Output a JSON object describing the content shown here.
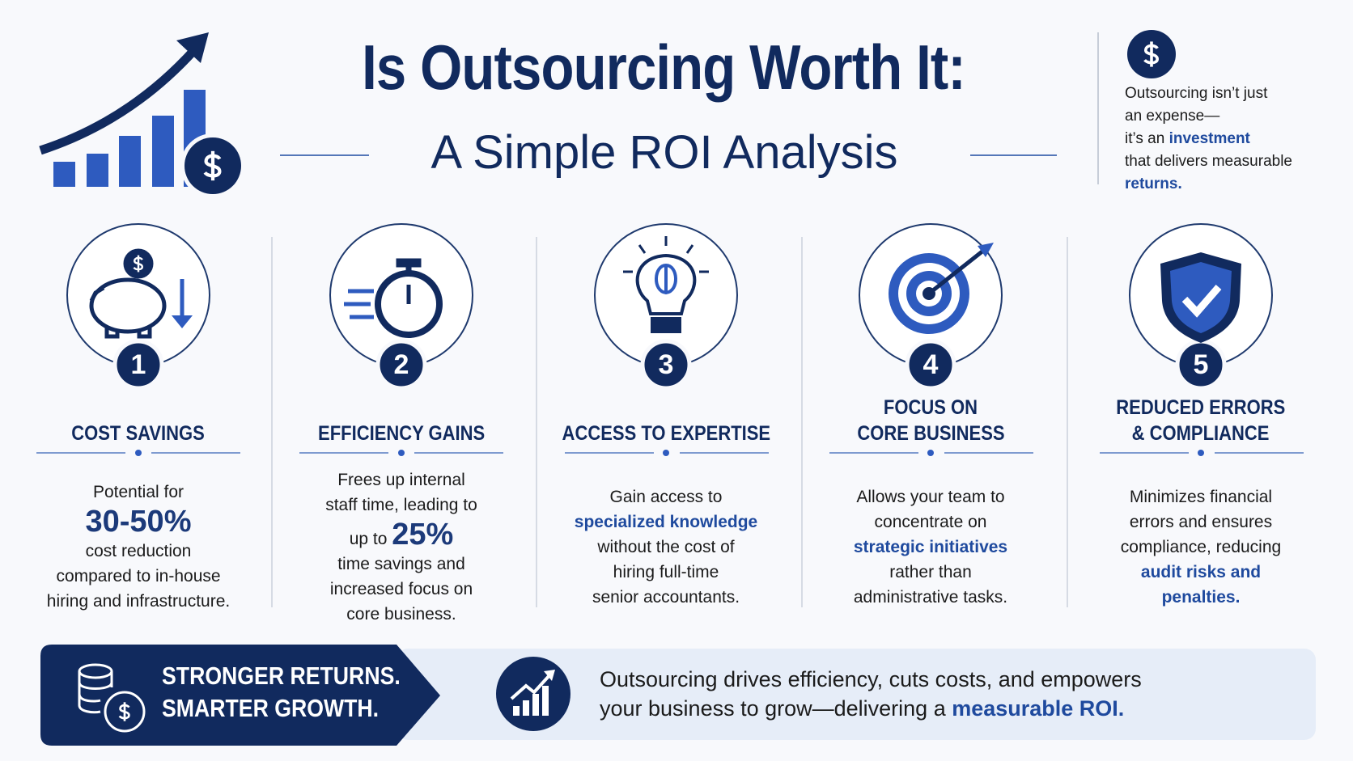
{
  "header": {
    "title": "Is Outsourcing Worth It:",
    "subtitle": "A Simple ROI Analysis"
  },
  "sidebar": {
    "lines": [
      "Outsourcing isn’t just",
      "an expense—",
      [
        "it’s an ",
        {
          "text": "investment",
          "style": "strong"
        }
      ],
      "that delivers measurable",
      [
        {
          "text": "returns.",
          "style": "strong"
        }
      ]
    ]
  },
  "cards": [
    {
      "number": "1",
      "title": [
        "COST SAVINGS"
      ],
      "lines": [
        "Potential for",
        [
          {
            "text": "30-50%",
            "style": "figure"
          }
        ],
        "cost reduction",
        "compared to in-house",
        "hiring and infrastructure."
      ]
    },
    {
      "number": "2",
      "title": [
        "EFFICIENCY GAINS"
      ],
      "lines": [
        "Frees up internal",
        "staff time, leading to",
        [
          "up to ",
          {
            "text": "25%",
            "style": "figure"
          }
        ],
        "time savings and",
        "increased focus on",
        "core business."
      ]
    },
    {
      "number": "3",
      "title": [
        "ACCESS TO EXPERTISE"
      ],
      "lines": [
        "Gain access to",
        [
          {
            "text": "specialized knowledge",
            "style": "strong"
          }
        ],
        "without the cost of",
        "hiring full-time",
        "senior accountants."
      ]
    },
    {
      "number": "4",
      "title": [
        "FOCUS ON",
        "CORE BUSINESS"
      ],
      "lines": [
        "Allows your team to",
        "concentrate on",
        [
          {
            "text": "strategic initiatives",
            "style": "strong"
          }
        ],
        "rather than",
        "administrative tasks."
      ]
    },
    {
      "number": "5",
      "title": [
        "REDUCED ERRORS",
        "& COMPLIANCE"
      ],
      "lines": [
        "Minimizes financial",
        "errors and ensures",
        "compliance, reducing",
        [
          {
            "text": "audit risks and",
            "style": "strong"
          }
        ],
        [
          {
            "text": "penalties.",
            "style": "strong"
          }
        ]
      ]
    }
  ],
  "footer": {
    "tagline": [
      "STRONGER RETURNS.",
      "SMARTER GROWTH."
    ],
    "lines": [
      "Outsourcing drives efficiency, cuts costs, and empowers",
      [
        "your business to grow—delivering a ",
        {
          "text": "measurable ROI.",
          "style": "strong"
        }
      ]
    ]
  }
}
